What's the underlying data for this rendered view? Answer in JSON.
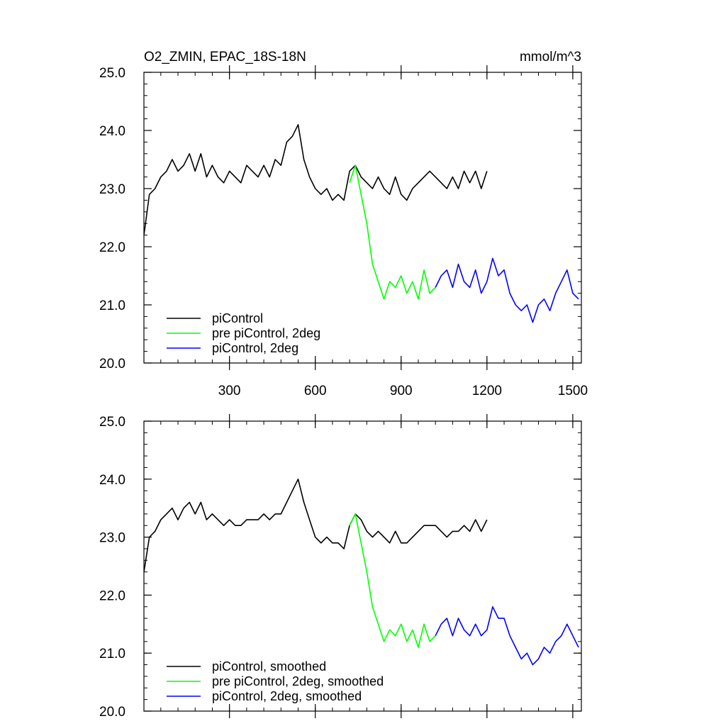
{
  "title_left": "O2_ZMIN, EPAC_18S-18N",
  "title_right": "mmol/m^3",
  "chart_data": [
    {
      "type": "line",
      "panel": "top",
      "xlim": [
        1,
        1530
      ],
      "ylim": [
        20.0,
        25.0
      ],
      "xticks": [
        300,
        600,
        900,
        1200,
        1500
      ],
      "xtick_labels": [
        "300",
        "600",
        "900",
        "1200",
        "1500"
      ],
      "yticks": [
        20.0,
        21.0,
        22.0,
        23.0,
        24.0,
        25.0
      ],
      "ytick_labels": [
        "20.0",
        "21.0",
        "22.0",
        "23.0",
        "24.0",
        "25.0"
      ],
      "legend_position": "bottom-left",
      "series": [
        {
          "name": "piControl",
          "color": "#000000",
          "x": [
            1,
            20,
            40,
            60,
            80,
            100,
            120,
            140,
            160,
            180,
            200,
            220,
            240,
            260,
            280,
            300,
            320,
            340,
            360,
            380,
            400,
            420,
            440,
            460,
            480,
            500,
            520,
            540,
            560,
            580,
            600,
            620,
            640,
            660,
            680,
            700,
            720,
            740,
            760,
            780,
            800,
            820,
            840,
            860,
            880,
            900,
            920,
            940,
            960,
            980,
            1000,
            1020,
            1040,
            1060,
            1080,
            1100,
            1120,
            1140,
            1160,
            1180,
            1200
          ],
          "y": [
            22.2,
            22.9,
            23.0,
            23.2,
            23.3,
            23.5,
            23.3,
            23.4,
            23.6,
            23.3,
            23.6,
            23.2,
            23.4,
            23.2,
            23.1,
            23.3,
            23.2,
            23.1,
            23.4,
            23.3,
            23.2,
            23.4,
            23.2,
            23.5,
            23.4,
            23.8,
            23.9,
            24.1,
            23.5,
            23.2,
            23.0,
            22.9,
            23.0,
            22.8,
            22.9,
            22.8,
            23.3,
            23.4,
            23.2,
            23.1,
            23.0,
            23.2,
            23.0,
            22.9,
            23.2,
            22.9,
            22.8,
            23.0,
            23.1,
            23.2,
            23.3,
            23.2,
            23.1,
            23.0,
            23.2,
            23.0,
            23.3,
            23.1,
            23.3,
            23.0,
            23.3
          ]
        },
        {
          "name": "pre piControl, 2deg",
          "color": "#00ff00",
          "x": [
            720,
            740,
            760,
            780,
            800,
            820,
            840,
            860,
            880,
            900,
            920,
            940,
            960,
            980,
            1000,
            1020
          ],
          "y": [
            23.1,
            23.4,
            22.9,
            22.4,
            21.7,
            21.4,
            21.1,
            21.4,
            21.3,
            21.5,
            21.2,
            21.4,
            21.1,
            21.6,
            21.2,
            21.3
          ]
        },
        {
          "name": "piControl, 2deg",
          "color": "#0000ff",
          "x": [
            1020,
            1040,
            1060,
            1080,
            1100,
            1120,
            1140,
            1160,
            1180,
            1200,
            1220,
            1240,
            1260,
            1280,
            1300,
            1320,
            1340,
            1360,
            1380,
            1400,
            1420,
            1440,
            1460,
            1480,
            1500,
            1520
          ],
          "y": [
            21.3,
            21.5,
            21.6,
            21.3,
            21.7,
            21.4,
            21.3,
            21.6,
            21.2,
            21.4,
            21.8,
            21.5,
            21.6,
            21.2,
            21.0,
            20.9,
            21.0,
            20.7,
            21.0,
            21.1,
            20.9,
            21.2,
            21.4,
            21.6,
            21.2,
            21.1
          ]
        }
      ]
    },
    {
      "type": "line",
      "panel": "bottom",
      "xlim": [
        1,
        1530
      ],
      "ylim": [
        20.0,
        25.0
      ],
      "xticks": [
        300,
        600,
        900,
        1200,
        1500
      ],
      "yticks": [
        20.0,
        21.0,
        22.0,
        23.0,
        24.0,
        25.0
      ],
      "ytick_labels": [
        "20.0",
        "21.0",
        "22.0",
        "23.0",
        "24.0",
        "25.0"
      ],
      "legend_position": "bottom-left",
      "series": [
        {
          "name": "piControl, smoothed",
          "color": "#000000",
          "x": [
            1,
            20,
            40,
            60,
            80,
            100,
            120,
            140,
            160,
            180,
            200,
            220,
            240,
            260,
            280,
            300,
            320,
            340,
            360,
            380,
            400,
            420,
            440,
            460,
            480,
            500,
            520,
            540,
            560,
            580,
            600,
            620,
            640,
            660,
            680,
            700,
            720,
            740,
            760,
            780,
            800,
            820,
            840,
            860,
            880,
            900,
            920,
            940,
            960,
            980,
            1000,
            1020,
            1040,
            1060,
            1080,
            1100,
            1120,
            1140,
            1160,
            1180,
            1200
          ],
          "y": [
            22.4,
            23.0,
            23.1,
            23.3,
            23.4,
            23.5,
            23.3,
            23.5,
            23.6,
            23.4,
            23.6,
            23.3,
            23.4,
            23.3,
            23.2,
            23.3,
            23.2,
            23.2,
            23.3,
            23.3,
            23.3,
            23.4,
            23.3,
            23.4,
            23.4,
            23.6,
            23.8,
            24.0,
            23.6,
            23.3,
            23.0,
            22.9,
            23.0,
            22.9,
            22.9,
            22.8,
            23.2,
            23.4,
            23.3,
            23.1,
            23.0,
            23.1,
            23.0,
            22.9,
            23.1,
            22.9,
            22.9,
            23.0,
            23.1,
            23.2,
            23.2,
            23.2,
            23.1,
            23.0,
            23.1,
            23.1,
            23.2,
            23.1,
            23.3,
            23.1,
            23.3
          ]
        },
        {
          "name": "pre piControl, 2deg, smoothed",
          "color": "#00ff00",
          "x": [
            720,
            740,
            760,
            780,
            800,
            820,
            840,
            860,
            880,
            900,
            920,
            940,
            960,
            980,
            1000,
            1020
          ],
          "y": [
            23.2,
            23.4,
            22.9,
            22.4,
            21.8,
            21.5,
            21.2,
            21.4,
            21.3,
            21.5,
            21.2,
            21.4,
            21.1,
            21.5,
            21.2,
            21.3
          ]
        },
        {
          "name": "piControl, 2deg, smoothed",
          "color": "#0000ff",
          "x": [
            1020,
            1040,
            1060,
            1080,
            1100,
            1120,
            1140,
            1160,
            1180,
            1200,
            1220,
            1240,
            1260,
            1280,
            1300,
            1320,
            1340,
            1360,
            1380,
            1400,
            1420,
            1440,
            1460,
            1480,
            1500,
            1520
          ],
          "y": [
            21.3,
            21.5,
            21.6,
            21.3,
            21.6,
            21.4,
            21.3,
            21.5,
            21.3,
            21.4,
            21.8,
            21.6,
            21.6,
            21.3,
            21.1,
            20.9,
            21.0,
            20.8,
            20.9,
            21.1,
            21.0,
            21.2,
            21.3,
            21.5,
            21.3,
            21.1
          ]
        }
      ]
    }
  ]
}
